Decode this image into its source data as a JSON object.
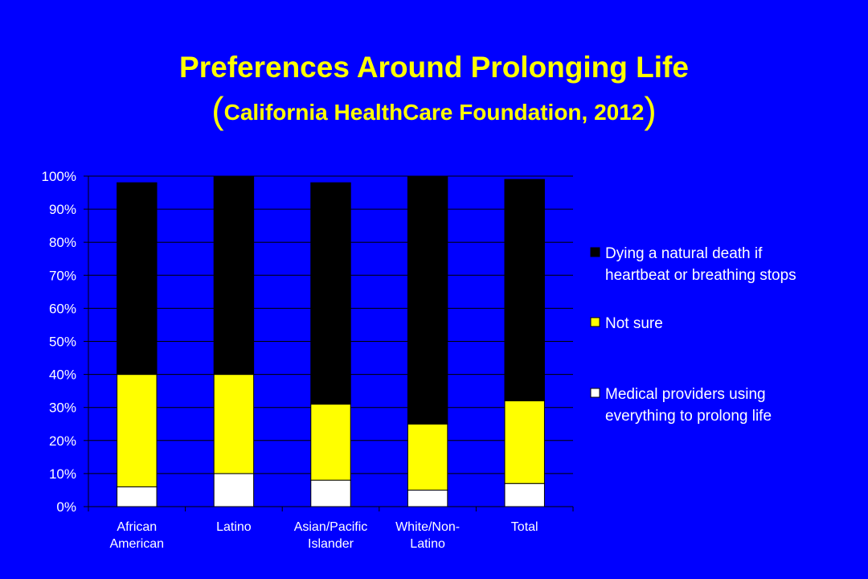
{
  "title": "Preferences Around Prolonging Life",
  "subtitle": {
    "open": "(",
    "text": "California HealthCare Foundation, 2012",
    "close": ")"
  },
  "colors": {
    "background": "#0000FF",
    "title": "#FFFF00",
    "text": "#FFFFFF"
  },
  "chart_data": {
    "type": "bar",
    "stacked": true,
    "categories": [
      [
        "African",
        "American"
      ],
      [
        "Latino"
      ],
      [
        "Asian/Pacific",
        "Islander"
      ],
      [
        "White/Non-",
        "Latino"
      ],
      [
        "Total"
      ]
    ],
    "series": [
      {
        "name": "Medical providers using everything to prolong life",
        "legend_lines": [
          "Medical providers using",
          "everything to prolong life"
        ],
        "color": "#FFFFFF",
        "values": [
          6,
          10,
          8,
          5,
          7
        ]
      },
      {
        "name": "Not sure",
        "legend_lines": [
          "Not sure"
        ],
        "color": "#FFFF00",
        "values": [
          34,
          30,
          23,
          20,
          25
        ]
      },
      {
        "name": "Dying a natural death if heartbeat or breathing stops",
        "legend_lines": [
          "Dying a natural death if",
          "heartbeat or breathing stops"
        ],
        "color": "#000000",
        "values": [
          58,
          60,
          67,
          75,
          67
        ]
      }
    ],
    "legend_order": [
      2,
      1,
      0
    ],
    "yticks": [
      "0%",
      "10%",
      "20%",
      "30%",
      "40%",
      "50%",
      "60%",
      "70%",
      "80%",
      "90%",
      "100%"
    ],
    "ylim": [
      0,
      100
    ],
    "grid": true,
    "legend_position": "right"
  }
}
